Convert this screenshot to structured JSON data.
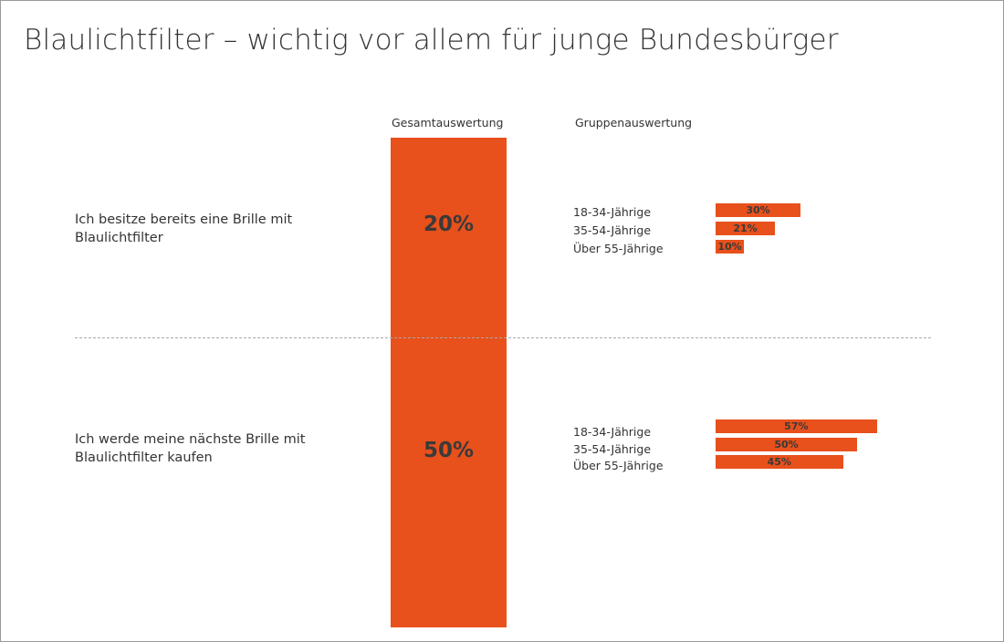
{
  "chart_data": {
    "type": "bar",
    "title": "Blaulichtfilter – wichtig vor allem für junge Bundesbürger",
    "column_headers": {
      "overall": "Gesamtauswertung",
      "groups": "Gruppenauswertung"
    },
    "unit": "%",
    "xlim": [
      0,
      100
    ],
    "categories": [
      "18-34-Jährige",
      "35-54-Jährige",
      "Über 55-Jährige"
    ],
    "questions": [
      {
        "label": "Ich besitze bereits eine Brille mit Blaulichtfilter",
        "overall": 20,
        "overall_label": "20%",
        "groups": [
          {
            "name": "18-34-Jährige",
            "value": 30,
            "label": "30%"
          },
          {
            "name": "35-54-Jährige",
            "value": 21,
            "label": "21%"
          },
          {
            "name": "Über 55-Jährige",
            "value": 10,
            "label": "10%"
          }
        ]
      },
      {
        "label": "Ich werde meine nächste Brille mit Blaulichtfilter kaufen",
        "overall": 50,
        "overall_label": "50%",
        "groups": [
          {
            "name": "18-34-Jährige",
            "value": 57,
            "label": "57%"
          },
          {
            "name": "35-54-Jährige",
            "value": 50,
            "label": "50%"
          },
          {
            "name": "Über 55-Jährige",
            "value": 45,
            "label": "45%"
          }
        ]
      }
    ],
    "colors": {
      "bar": "#e8501c",
      "value_text": "#3a3a3a"
    }
  }
}
